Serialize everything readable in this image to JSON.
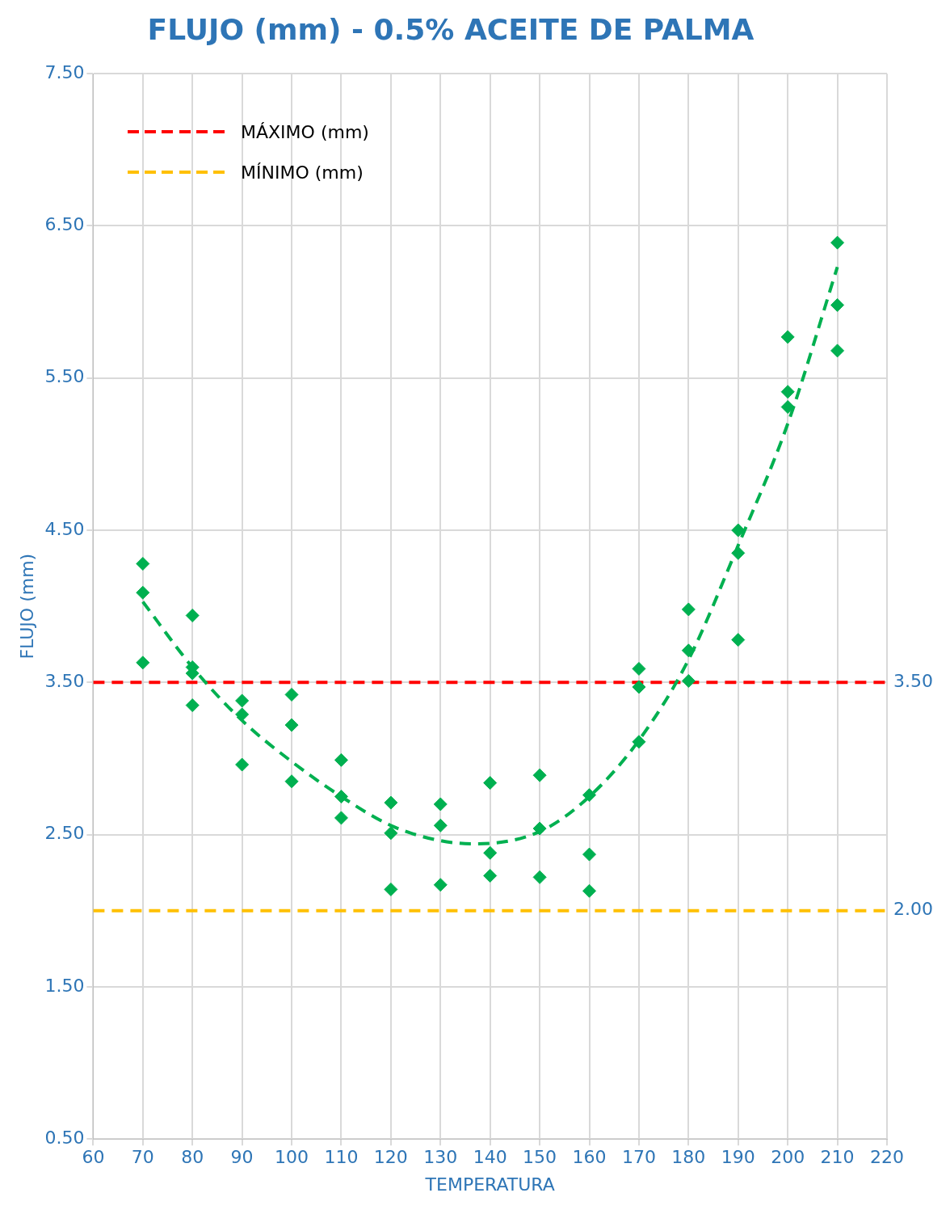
{
  "chart_data": {
    "type": "scatter",
    "title": "FLUJO (mm) - 0.5% ACEITE DE PALMA",
    "xlabel": "TEMPERATURA",
    "ylabel": "FLUJO (mm)",
    "xlim": [
      60,
      220
    ],
    "xticks": [
      60,
      70,
      80,
      90,
      100,
      110,
      120,
      130,
      140,
      150,
      160,
      170,
      180,
      190,
      200,
      210,
      220
    ],
    "ylim": [
      0.5,
      7.5
    ],
    "yticks": [
      {
        "value": 0.5,
        "label": "0.50"
      },
      {
        "value": 1.5,
        "label": "1.50"
      },
      {
        "value": 2.5,
        "label": "2.50"
      },
      {
        "value": 3.5,
        "label": "3.50"
      },
      {
        "value": 4.5,
        "label": "4.50"
      },
      {
        "value": 5.5,
        "label": "5.50"
      },
      {
        "value": 6.5,
        "label": "6.50"
      },
      {
        "value": 7.5,
        "label": "7.50"
      }
    ],
    "grid": true,
    "legend": "top left",
    "series": [
      {
        "type": "scatter",
        "color": "#00b050",
        "marker": "diamond",
        "x": [
          70,
          70,
          70,
          80,
          80,
          80,
          80,
          90,
          90,
          90,
          100,
          100,
          100,
          110,
          110,
          110,
          120,
          120,
          120,
          130,
          130,
          130,
          140,
          140,
          140,
          150,
          150,
          150,
          160,
          160,
          160,
          170,
          170,
          170,
          180,
          180,
          180,
          190,
          190,
          190,
          200,
          200,
          200,
          210,
          210,
          210
        ],
        "values": [
          4.28,
          4.09,
          3.63,
          3.94,
          3.6,
          3.56,
          3.35,
          3.38,
          3.29,
          2.96,
          3.42,
          3.22,
          2.85,
          2.99,
          2.75,
          2.61,
          2.71,
          2.51,
          2.14,
          2.7,
          2.56,
          2.17,
          2.84,
          2.38,
          2.23,
          2.89,
          2.54,
          2.22,
          2.76,
          2.37,
          2.13,
          3.59,
          3.47,
          3.11,
          3.98,
          3.71,
          3.51,
          4.5,
          4.35,
          3.78,
          5.77,
          5.41,
          5.31,
          6.39,
          5.98,
          5.68
        ]
      },
      {
        "type": "line",
        "color": "#00b050",
        "line_style": "dashed",
        "x": [
          70,
          80,
          90,
          100,
          110,
          120,
          130,
          137,
          150,
          160,
          170,
          180,
          190,
          200,
          210
        ],
        "values": [
          4.03,
          3.6,
          3.25,
          2.98,
          2.75,
          2.56,
          2.46,
          2.44,
          2.52,
          2.75,
          3.12,
          3.65,
          4.4,
          5.2,
          6.23
        ]
      },
      {
        "type": "line",
        "name": "MÁXIMO (mm)",
        "color": "#ff0000",
        "line_style": "dashed",
        "x": [
          60,
          220
        ],
        "values": [
          3.5,
          3.5
        ],
        "value_labels": [
          null,
          "3.50"
        ]
      },
      {
        "type": "line",
        "name": "MÍNIMO (mm)",
        "color": "#ffc000",
        "line_style": "dashed",
        "x": [
          60,
          220
        ],
        "values": [
          2.0,
          2.0
        ],
        "value_labels": [
          null,
          "2.00"
        ]
      }
    ]
  }
}
